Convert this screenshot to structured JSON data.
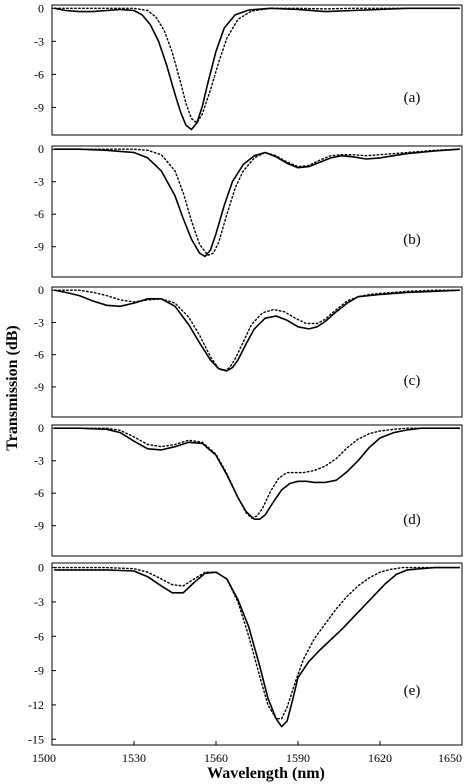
{
  "figure": {
    "ylabel": "Transmission (dB)",
    "xlabel": "Wavelength (nm)"
  },
  "chart_data": [
    {
      "type": "line",
      "panel_label": "(a)",
      "xlabel": "Wavelength (nm)",
      "ylabel": "Transmission (dB)",
      "xlim": [
        1500,
        1650
      ],
      "ylim": [
        -11.5,
        0.3
      ],
      "yticks": [
        0,
        -3,
        -6,
        -9
      ],
      "series": [
        {
          "style": "solid",
          "x": [
            1501,
            1505,
            1510,
            1515,
            1520,
            1525,
            1530,
            1533,
            1536,
            1539,
            1542,
            1545,
            1547,
            1549,
            1551,
            1553,
            1555,
            1557,
            1560,
            1563,
            1567,
            1572,
            1580,
            1590,
            1600,
            1610,
            1620,
            1630,
            1640,
            1649
          ],
          "y": [
            0,
            -0.2,
            -0.3,
            -0.3,
            -0.2,
            -0.1,
            -0.2,
            -0.6,
            -1.5,
            -3.0,
            -5.2,
            -7.8,
            -9.4,
            -10.6,
            -11.0,
            -10.4,
            -8.9,
            -6.8,
            -3.9,
            -1.8,
            -0.6,
            -0.15,
            0,
            -0.1,
            -0.3,
            -0.2,
            -0.1,
            0,
            0,
            0
          ]
        },
        {
          "style": "dotted",
          "x": [
            1501,
            1505,
            1510,
            1515,
            1520,
            1525,
            1530,
            1535,
            1538,
            1541,
            1544,
            1547,
            1549,
            1551,
            1553,
            1555,
            1558,
            1561,
            1564,
            1568,
            1573,
            1580,
            1590,
            1600,
            1610,
            1620,
            1630,
            1640,
            1649
          ],
          "y": [
            0,
            0,
            0,
            0,
            0,
            0,
            0,
            -0.2,
            -0.8,
            -2.0,
            -4.0,
            -6.7,
            -8.6,
            -10.0,
            -10.4,
            -9.6,
            -7.4,
            -4.9,
            -2.7,
            -1.0,
            -0.25,
            0,
            0,
            -0.05,
            0,
            0,
            0,
            0,
            0
          ]
        }
      ]
    },
    {
      "type": "line",
      "panel_label": "(b)",
      "xlabel": "Wavelength (nm)",
      "ylabel": "Transmission (dB)",
      "xlim": [
        1500,
        1650
      ],
      "ylim": [
        -11.8,
        0.3
      ],
      "yticks": [
        0,
        -3,
        -6,
        -9
      ],
      "series": [
        {
          "style": "solid",
          "x": [
            1501,
            1510,
            1520,
            1530,
            1535,
            1540,
            1545,
            1548,
            1551,
            1554,
            1556,
            1558,
            1560,
            1563,
            1566,
            1570,
            1574,
            1578,
            1582,
            1586,
            1590,
            1594,
            1598,
            1602,
            1606,
            1610,
            1615,
            1620,
            1630,
            1640,
            1649
          ],
          "y": [
            0,
            0,
            -0.1,
            -0.3,
            -0.8,
            -2.0,
            -4.3,
            -6.4,
            -8.3,
            -9.6,
            -9.9,
            -9.3,
            -7.8,
            -5.2,
            -3.0,
            -1.4,
            -0.6,
            -0.3,
            -0.7,
            -1.3,
            -1.7,
            -1.6,
            -1.2,
            -0.8,
            -0.6,
            -0.7,
            -0.9,
            -0.8,
            -0.4,
            -0.15,
            0
          ]
        },
        {
          "style": "dotted",
          "x": [
            1501,
            1510,
            1520,
            1530,
            1535,
            1540,
            1545,
            1548,
            1551,
            1554,
            1557,
            1559,
            1561,
            1564,
            1567,
            1570,
            1574,
            1578,
            1582,
            1586,
            1590,
            1594,
            1598,
            1602,
            1606,
            1610,
            1615,
            1620,
            1630,
            1640,
            1649
          ],
          "y": [
            0,
            0,
            0,
            0,
            -0.1,
            -0.5,
            -2.0,
            -4.0,
            -6.6,
            -8.8,
            -9.8,
            -9.6,
            -8.6,
            -6.0,
            -3.6,
            -2.0,
            -0.8,
            -0.3,
            -0.6,
            -1.2,
            -1.6,
            -1.5,
            -1.0,
            -0.6,
            -0.5,
            -0.5,
            -0.6,
            -0.5,
            -0.3,
            -0.1,
            0
          ]
        }
      ]
    },
    {
      "type": "line",
      "panel_label": "(c)",
      "xlabel": "Wavelength (nm)",
      "ylabel": "Transmission (dB)",
      "xlim": [
        1500,
        1650
      ],
      "ylim": [
        -11.8,
        0.3
      ],
      "yticks": [
        0,
        -3,
        -6,
        -9
      ],
      "series": [
        {
          "style": "solid",
          "x": [
            1501,
            1505,
            1510,
            1515,
            1520,
            1525,
            1530,
            1535,
            1540,
            1545,
            1550,
            1554,
            1558,
            1561,
            1564,
            1566,
            1568,
            1571,
            1574,
            1578,
            1582,
            1586,
            1590,
            1594,
            1597,
            1600,
            1604,
            1608,
            1612,
            1616,
            1620,
            1625,
            1630,
            1640,
            1649
          ],
          "y": [
            0,
            -0.2,
            -0.5,
            -1.0,
            -1.4,
            -1.5,
            -1.2,
            -0.8,
            -0.8,
            -1.5,
            -3.2,
            -4.9,
            -6.5,
            -7.3,
            -7.5,
            -7.2,
            -6.5,
            -5.0,
            -3.6,
            -2.6,
            -2.4,
            -2.8,
            -3.4,
            -3.6,
            -3.4,
            -2.9,
            -2.0,
            -1.2,
            -0.6,
            -0.5,
            -0.4,
            -0.3,
            -0.2,
            -0.1,
            0
          ]
        },
        {
          "style": "dotted",
          "x": [
            1501,
            1505,
            1510,
            1515,
            1520,
            1525,
            1530,
            1535,
            1540,
            1545,
            1550,
            1554,
            1558,
            1561,
            1563,
            1565,
            1567,
            1570,
            1573,
            1577,
            1581,
            1585,
            1589,
            1593,
            1597,
            1600,
            1604,
            1608,
            1612,
            1616,
            1620,
            1625,
            1630,
            1640,
            1649
          ],
          "y": [
            0,
            0,
            0,
            -0.2,
            -0.5,
            -0.9,
            -1.1,
            -0.9,
            -0.8,
            -1.2,
            -2.5,
            -4.2,
            -6.2,
            -7.3,
            -7.5,
            -7.2,
            -6.4,
            -4.8,
            -3.2,
            -2.1,
            -1.8,
            -2.0,
            -2.6,
            -3.1,
            -3.1,
            -2.7,
            -1.8,
            -1.0,
            -0.6,
            -0.4,
            -0.3,
            -0.2,
            -0.1,
            0,
            0
          ]
        }
      ]
    },
    {
      "type": "line",
      "panel_label": "(d)",
      "xlabel": "Wavelength (nm)",
      "ylabel": "Transmission (dB)",
      "xlim": [
        1500,
        1650
      ],
      "ylim": [
        -11.8,
        0.3
      ],
      "yticks": [
        0,
        -3,
        -6,
        -9
      ],
      "series": [
        {
          "style": "solid",
          "x": [
            1501,
            1510,
            1520,
            1525,
            1530,
            1535,
            1540,
            1545,
            1550,
            1555,
            1560,
            1564,
            1568,
            1571,
            1574,
            1576,
            1578,
            1581,
            1584,
            1587,
            1590,
            1593,
            1596,
            1600,
            1604,
            1608,
            1612,
            1616,
            1620,
            1625,
            1630,
            1635,
            1640,
            1649
          ],
          "y": [
            0,
            0,
            -0.1,
            -0.4,
            -1.2,
            -1.9,
            -2.0,
            -1.7,
            -1.3,
            -1.4,
            -2.5,
            -4.3,
            -6.4,
            -7.7,
            -8.4,
            -8.4,
            -8.0,
            -6.8,
            -5.7,
            -5.1,
            -4.9,
            -4.9,
            -5.0,
            -5.0,
            -4.8,
            -4.0,
            -3.0,
            -1.8,
            -0.9,
            -0.4,
            -0.15,
            0,
            0,
            0
          ]
        },
        {
          "style": "dotted",
          "x": [
            1501,
            1510,
            1520,
            1525,
            1530,
            1535,
            1540,
            1545,
            1550,
            1555,
            1560,
            1564,
            1568,
            1571,
            1573,
            1575,
            1577,
            1580,
            1583,
            1586,
            1589,
            1592,
            1596,
            1600,
            1604,
            1608,
            1612,
            1616,
            1620,
            1625,
            1630,
            1635,
            1640,
            1649
          ],
          "y": [
            0,
            0,
            0,
            -0.2,
            -0.8,
            -1.5,
            -1.7,
            -1.5,
            -1.1,
            -1.3,
            -2.4,
            -4.2,
            -6.4,
            -7.8,
            -8.3,
            -8.1,
            -7.4,
            -5.8,
            -4.6,
            -4.1,
            -4.1,
            -4.1,
            -3.9,
            -3.5,
            -2.8,
            -1.8,
            -1.0,
            -0.5,
            -0.25,
            -0.1,
            0,
            0,
            0,
            0
          ]
        }
      ]
    },
    {
      "type": "line",
      "panel_label": "(e)",
      "xlabel": "Wavelength (nm)",
      "ylabel": "Transmission (dB)",
      "xlim": [
        1500,
        1650
      ],
      "ylim": [
        -15.5,
        0.4
      ],
      "yticks": [
        0,
        -3,
        -6,
        -9,
        -12,
        -15
      ],
      "xticks": [
        1500,
        1530,
        1560,
        1590,
        1620,
        1650
      ],
      "series": [
        {
          "style": "solid",
          "x": [
            1501,
            1510,
            1520,
            1530,
            1535,
            1540,
            1544,
            1548,
            1552,
            1556,
            1560,
            1564,
            1568,
            1572,
            1576,
            1579,
            1582,
            1584,
            1586,
            1588,
            1590,
            1594,
            1598,
            1602,
            1606,
            1610,
            1614,
            1618,
            1622,
            1626,
            1630,
            1635,
            1640,
            1649
          ],
          "y": [
            -0.2,
            -0.2,
            -0.2,
            -0.3,
            -0.8,
            -1.6,
            -2.2,
            -2.2,
            -1.3,
            -0.5,
            -0.4,
            -1.0,
            -2.8,
            -5.2,
            -8.6,
            -11.4,
            -13.2,
            -13.9,
            -13.4,
            -11.6,
            -9.6,
            -8.2,
            -7.2,
            -6.3,
            -5.4,
            -4.4,
            -3.4,
            -2.4,
            -1.4,
            -0.6,
            -0.2,
            -0.1,
            0,
            0
          ]
        },
        {
          "style": "dotted",
          "x": [
            1501,
            1510,
            1520,
            1530,
            1535,
            1540,
            1544,
            1548,
            1552,
            1556,
            1560,
            1564,
            1568,
            1572,
            1576,
            1579,
            1582,
            1584,
            1586,
            1589,
            1592,
            1596,
            1600,
            1604,
            1608,
            1612,
            1616,
            1620,
            1624,
            1628,
            1632,
            1636,
            1640,
            1649
          ],
          "y": [
            0,
            0,
            0,
            -0.1,
            -0.4,
            -1.0,
            -1.5,
            -1.6,
            -1.0,
            -0.4,
            -0.4,
            -1.0,
            -3.0,
            -6.0,
            -9.5,
            -12.0,
            -13.2,
            -13.2,
            -12.2,
            -10.0,
            -8.0,
            -6.2,
            -4.9,
            -3.6,
            -2.5,
            -1.6,
            -0.9,
            -0.4,
            -0.15,
            0,
            0,
            0,
            0,
            0
          ]
        }
      ]
    }
  ]
}
